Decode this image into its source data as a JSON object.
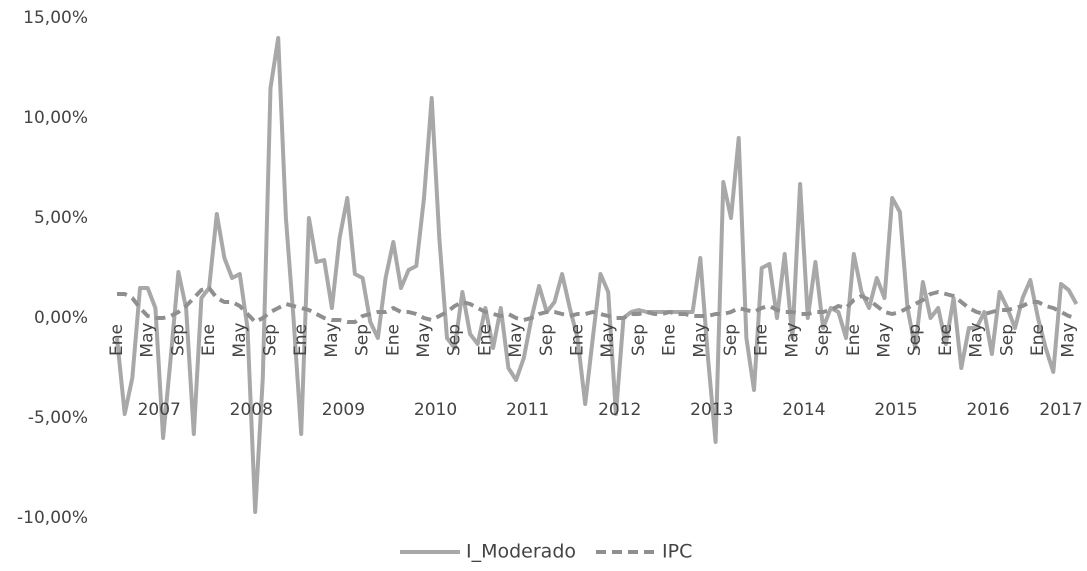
{
  "chart_data": {
    "type": "line",
    "categories": [
      "Ene",
      null,
      null,
      null,
      "May",
      null,
      null,
      null,
      "Sep",
      null,
      null,
      null,
      "Ene",
      null,
      null,
      null,
      "May",
      null,
      null,
      null,
      "Sep",
      null,
      null,
      null,
      "Ene",
      null,
      null,
      null,
      "May",
      null,
      null,
      null,
      "Sep",
      null,
      null,
      null,
      "Ene",
      null,
      null,
      null,
      "May",
      null,
      null,
      null,
      "Sep",
      null,
      null,
      null,
      "Ene",
      null,
      null,
      null,
      "May",
      null,
      null,
      null,
      "Sep",
      null,
      null,
      null,
      "Ene",
      null,
      null,
      null,
      "May",
      null,
      null,
      null,
      "Sep",
      null,
      null,
      null,
      "Ene",
      null,
      null,
      null,
      "May",
      null,
      null,
      null,
      "Sep",
      null,
      null,
      null,
      "Ene",
      null,
      null,
      null,
      "May",
      null,
      null,
      null,
      "Sep",
      null,
      null,
      null,
      "Ene",
      null,
      null,
      null,
      "May",
      null,
      null,
      null,
      "Sep",
      null,
      null,
      null,
      "Ene",
      null,
      null,
      null,
      "May",
      null,
      null,
      null,
      "Sep",
      null,
      null,
      null,
      "Ene",
      null,
      null,
      null,
      "May",
      null
    ],
    "years": [
      "2007",
      "2008",
      "2009",
      "2010",
      "2011",
      "2012",
      "2013",
      "2014",
      "2015",
      "2016",
      "2017"
    ],
    "series": [
      {
        "name": "I_Moderado",
        "color": "#a8a8a8",
        "dashed": false,
        "values": [
          -1.0,
          -4.8,
          -3.0,
          1.5,
          1.5,
          0.5,
          -6.0,
          -2.0,
          2.3,
          0.5,
          -5.8,
          1.0,
          1.5,
          5.2,
          3.0,
          2.0,
          2.2,
          -0.5,
          -9.7,
          -3.0,
          11.5,
          14.0,
          5.0,
          0.0,
          -5.8,
          5.0,
          2.8,
          2.9,
          0.5,
          4.0,
          6.0,
          2.2,
          2.0,
          -0.2,
          -1.0,
          2.0,
          3.8,
          1.5,
          2.4,
          2.6,
          6.0,
          11.0,
          4.0,
          -1.0,
          -1.5,
          1.3,
          -0.8,
          -1.3,
          0.5,
          -1.5,
          0.5,
          -2.5,
          -3.1,
          -2.0,
          0.0,
          1.6,
          0.3,
          0.8,
          2.2,
          0.5,
          -1.0,
          -4.3,
          -1.0,
          2.2,
          1.3,
          -4.8,
          0.0,
          0.3,
          0.4,
          0.3,
          0.3,
          0.3,
          0.3,
          0.3,
          0.3,
          0.3,
          3.0,
          -2.0,
          -6.2,
          6.8,
          5.0,
          9.0,
          -1.0,
          -3.6,
          2.5,
          2.7,
          0.0,
          3.2,
          -1.0,
          6.7,
          0.0,
          2.8,
          -0.5,
          0.5,
          0.3,
          -1.0,
          3.2,
          1.3,
          0.5,
          2.0,
          1.0,
          6.0,
          5.3,
          0.5,
          -1.5,
          1.8,
          0.0,
          0.5,
          -1.3,
          1.0,
          -2.5,
          -0.5,
          -0.5,
          0.3,
          -1.8,
          1.3,
          0.5,
          -0.5,
          1.0,
          1.9,
          0.0,
          -1.5,
          -2.7,
          1.7,
          1.4,
          0.7
        ]
      },
      {
        "name": "IPC",
        "color": "#8f8f8f",
        "dashed": true,
        "values": [
          1.2,
          1.2,
          1.0,
          0.5,
          0.1,
          0.0,
          0.0,
          0.1,
          0.3,
          0.6,
          1.0,
          1.4,
          1.5,
          1.0,
          0.8,
          0.8,
          0.6,
          0.2,
          -0.2,
          0.0,
          0.3,
          0.5,
          0.7,
          0.6,
          0.5,
          0.4,
          0.2,
          0.0,
          -0.1,
          -0.1,
          -0.2,
          -0.2,
          0.1,
          0.2,
          0.3,
          0.3,
          0.5,
          0.3,
          0.3,
          0.2,
          0.0,
          -0.1,
          0.1,
          0.3,
          0.6,
          0.8,
          0.7,
          0.5,
          0.3,
          0.2,
          0.1,
          0.2,
          0.0,
          -0.1,
          0.0,
          0.2,
          0.3,
          0.3,
          0.2,
          0.1,
          0.2,
          0.2,
          0.3,
          0.2,
          0.1,
          0.0,
          0.0,
          0.2,
          0.2,
          0.3,
          0.2,
          0.2,
          0.3,
          0.2,
          0.2,
          0.1,
          0.1,
          0.1,
          0.2,
          0.2,
          0.3,
          0.5,
          0.4,
          0.3,
          0.5,
          0.6,
          0.4,
          0.3,
          0.3,
          0.2,
          0.2,
          0.3,
          0.3,
          0.4,
          0.6,
          0.5,
          0.9,
          1.1,
          0.9,
          0.6,
          0.3,
          0.2,
          0.3,
          0.5,
          0.7,
          0.9,
          1.2,
          1.3,
          1.2,
          1.1,
          0.8,
          0.5,
          0.3,
          0.2,
          0.3,
          0.4,
          0.4,
          0.5,
          0.6,
          0.8,
          0.8,
          0.6,
          0.5,
          0.3,
          0.1,
          0.0
        ]
      }
    ],
    "ylim": [
      -10,
      15
    ],
    "yticks": [
      {
        "value": -10,
        "label": "-10,00%"
      },
      {
        "value": -5,
        "label": "-5,00%"
      },
      {
        "value": 0,
        "label": "0,00%"
      },
      {
        "value": 5,
        "label": "5,00%"
      },
      {
        "value": 10,
        "label": "10,00%"
      },
      {
        "value": 15,
        "label": "15,00%"
      }
    ],
    "legend": "bottom"
  }
}
